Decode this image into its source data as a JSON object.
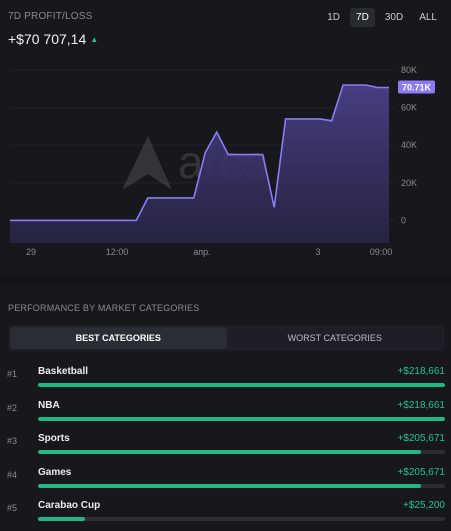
{
  "header": {
    "title": "7D PROFIT/LOSS",
    "value": "+$70 707,14",
    "trend_icon": "up-triangle-icon"
  },
  "tabs": [
    {
      "label": "1D",
      "active": false
    },
    {
      "label": "7D",
      "active": true
    },
    {
      "label": "30D",
      "active": false
    },
    {
      "label": "ALL",
      "active": false
    }
  ],
  "watermark": "ares",
  "chart_data": {
    "type": "area",
    "x_tick_labels": [
      "29",
      "12:00",
      "апр.",
      "3",
      "09:00"
    ],
    "y_tick_labels": [
      "80K",
      "60K",
      "40K",
      "20K",
      "0"
    ],
    "ylim": [
      -12000,
      80000
    ],
    "current_value_label": "70.71K",
    "line_color": "#8b7cf6",
    "values": [
      0,
      0,
      0,
      0,
      0,
      0,
      0,
      0,
      0,
      0,
      0,
      0,
      12000,
      12000,
      12000,
      12000,
      12000,
      36000,
      47000,
      35000,
      35000,
      35000,
      35000,
      7000,
      54000,
      54000,
      54000,
      54000,
      53000,
      72000,
      72000,
      72000,
      70710,
      70710
    ]
  },
  "categories_section": {
    "title": "PERFORMANCE BY MARKET CATEGORIES",
    "best_label": "BEST CATEGORIES",
    "worst_label": "WORST CATEGORIES",
    "items": [
      {
        "rank": "#1",
        "name": "Basketball",
        "value": "+$218,661",
        "fill": 1.0
      },
      {
        "rank": "#2",
        "name": "NBA",
        "value": "+$218,661",
        "fill": 1.0
      },
      {
        "rank": "#3",
        "name": "Sports",
        "value": "+$205,671",
        "fill": 0.94
      },
      {
        "rank": "#4",
        "name": "Games",
        "value": "+$205,671",
        "fill": 0.94
      },
      {
        "rank": "#5",
        "name": "Carabao Cup",
        "value": "+$25,200",
        "fill": 0.115
      }
    ]
  },
  "colors": {
    "accent_purple": "#8b7cf6",
    "positive_green": "#22c58b"
  }
}
